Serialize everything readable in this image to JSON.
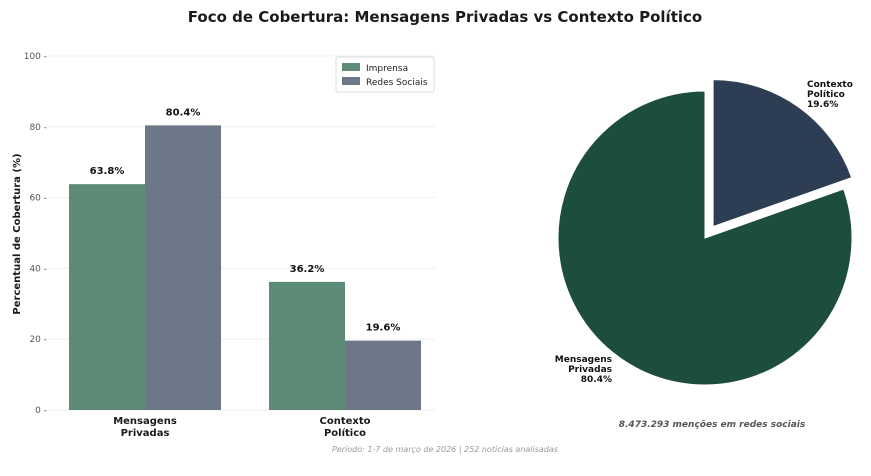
{
  "title": "Foco de Cobertura: Mensagens Privadas vs Contexto Político",
  "footer": "Período: 1-7 de março de 2026 | 252 notícias analisadas",
  "colors": {
    "imprensa": "#5e8a78",
    "redes": "#6c7888",
    "pie_privadas": "#1d4d3e",
    "pie_contexto": "#2d3e54"
  },
  "chart_data": [
    {
      "type": "bar",
      "ylabel": "Percentual de Cobertura (%)",
      "ylim": [
        0,
        100
      ],
      "yticks": [
        0,
        20,
        40,
        60,
        80,
        100
      ],
      "grid": true,
      "legend_position": "top-right",
      "categories": [
        [
          "Mensagens",
          "Privadas"
        ],
        [
          "Contexto",
          "Político"
        ]
      ],
      "series": [
        {
          "name": "Imprensa",
          "values": [
            63.8,
            36.2
          ],
          "labels": [
            "63.8%",
            "36.2%"
          ]
        },
        {
          "name": "Redes Sociais",
          "values": [
            80.4,
            19.6
          ],
          "labels": [
            "80.4%",
            "19.6%"
          ]
        }
      ]
    },
    {
      "type": "pie",
      "slices": [
        {
          "label": [
            "Contexto",
            "Político",
            "19.6%"
          ],
          "value": 19.6,
          "exploded": true
        },
        {
          "label": [
            "Mensagens",
            "Privadas",
            "80.4%"
          ],
          "value": 80.4,
          "exploded": false
        }
      ],
      "note": "8.473.293 menções em redes sociais"
    }
  ]
}
